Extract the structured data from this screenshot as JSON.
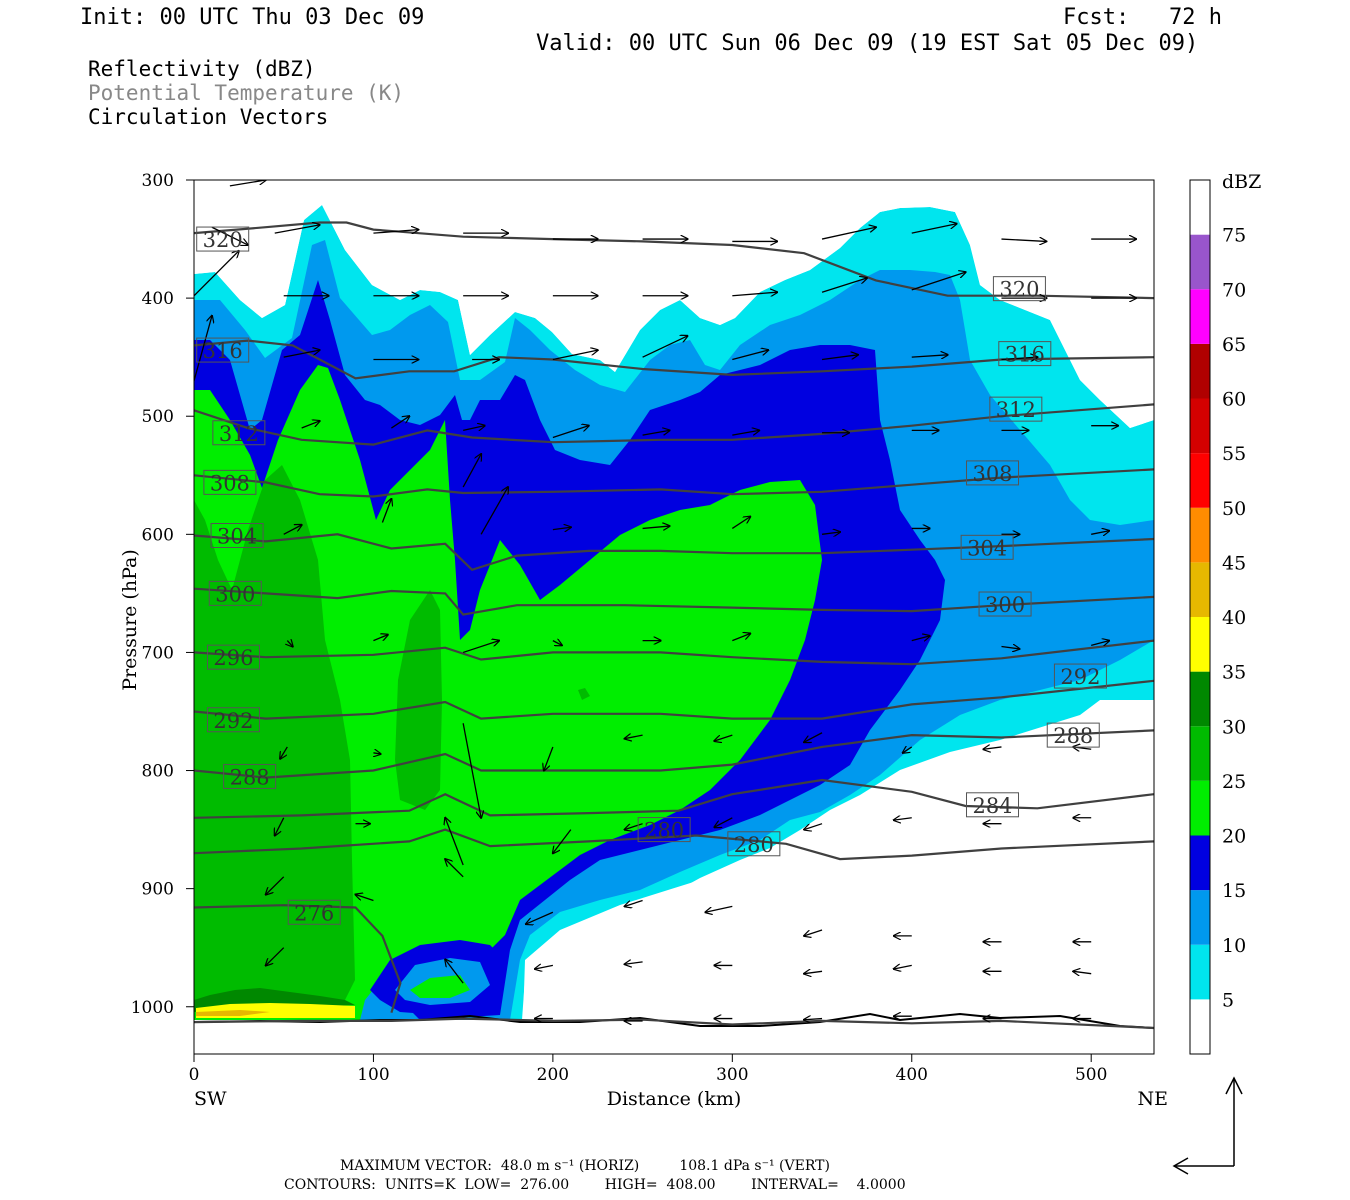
{
  "header": {
    "init": "Init: 00 UTC Thu 03 Dec 09",
    "fcst": "Fcst:   72 h",
    "valid": "Valid: 00 UTC Sun 06 Dec 09 (19 EST Sat 05 Dec 09)"
  },
  "fields": {
    "reflectivity": "Reflectivity (dBZ)",
    "theta": "Potential Temperature (K)",
    "vectors": "Circulation Vectors"
  },
  "colors": {
    "theta_label": "#888888",
    "contour_line": "#404040",
    "vector": "#000000"
  },
  "chart_data": {
    "type": "heatmap",
    "xlabel": "Distance (km)",
    "ylabel": "Pressure (hPa)",
    "xlim": [
      0,
      535
    ],
    "ylim": [
      1040,
      300
    ],
    "x_ticks": [
      0,
      100,
      200,
      300,
      400,
      500
    ],
    "y_ticks": [
      300,
      400,
      500,
      600,
      700,
      800,
      900,
      1000
    ],
    "x_end_labels": {
      "left": "SW",
      "right": "NE"
    },
    "colorbar": {
      "unit": "dBZ",
      "levels": [
        5,
        10,
        15,
        20,
        25,
        30,
        35,
        40,
        45,
        50,
        55,
        60,
        65,
        70,
        75
      ],
      "colors": [
        "#ffffff",
        "#00e5ee",
        "#0099ee",
        "#0000e0",
        "#00ee00",
        "#00bb00",
        "#008800",
        "#ffff00",
        "#e6b800",
        "#ff8c00",
        "#ff0000",
        "#d40000",
        "#b00000",
        "#ff00ff",
        "#9955cc",
        "#ffffff"
      ]
    },
    "theta_contours": [
      {
        "label": "320",
        "label_pos": [
          [
            16,
            350
          ],
          [
            460,
            392
          ]
        ],
        "values": [
          [
            0,
            345
          ],
          [
            40,
            340
          ],
          [
            70,
            336
          ],
          [
            85,
            336
          ],
          [
            100,
            342
          ],
          [
            150,
            348
          ],
          [
            200,
            350
          ],
          [
            250,
            352
          ],
          [
            300,
            355
          ],
          [
            340,
            362
          ],
          [
            380,
            385
          ],
          [
            420,
            398
          ],
          [
            470,
            398
          ],
          [
            535,
            400
          ]
        ]
      },
      {
        "label": "316",
        "label_pos": [
          [
            16,
            444
          ],
          [
            463,
            447
          ]
        ],
        "values": [
          [
            0,
            440
          ],
          [
            30,
            436
          ],
          [
            55,
            440
          ],
          [
            70,
            452
          ],
          [
            90,
            468
          ],
          [
            120,
            462
          ],
          [
            145,
            462
          ],
          [
            170,
            450
          ],
          [
            200,
            452
          ],
          [
            250,
            460
          ],
          [
            300,
            465
          ],
          [
            350,
            462
          ],
          [
            400,
            458
          ],
          [
            450,
            452
          ],
          [
            535,
            450
          ]
        ]
      },
      {
        "label": "312",
        "label_pos": [
          [
            25,
            514
          ],
          [
            458,
            494
          ]
        ],
        "values": [
          [
            0,
            495
          ],
          [
            30,
            510
          ],
          [
            60,
            520
          ],
          [
            100,
            524
          ],
          [
            130,
            512
          ],
          [
            155,
            518
          ],
          [
            200,
            522
          ],
          [
            260,
            520
          ],
          [
            300,
            520
          ],
          [
            350,
            515
          ],
          [
            400,
            508
          ],
          [
            450,
            500
          ],
          [
            535,
            490
          ]
        ]
      },
      {
        "label": "308",
        "label_pos": [
          [
            20,
            556
          ],
          [
            445,
            548
          ]
        ],
        "values": [
          [
            0,
            550
          ],
          [
            40,
            556
          ],
          [
            70,
            566
          ],
          [
            100,
            568
          ],
          [
            130,
            562
          ],
          [
            150,
            565
          ],
          [
            200,
            564
          ],
          [
            260,
            562
          ],
          [
            300,
            566
          ],
          [
            350,
            564
          ],
          [
            400,
            558
          ],
          [
            450,
            552
          ],
          [
            535,
            545
          ]
        ]
      },
      {
        "label": "304",
        "label_pos": [
          [
            24,
            601
          ],
          [
            442,
            611
          ]
        ],
        "values": [
          [
            0,
            601
          ],
          [
            40,
            606
          ],
          [
            80,
            600
          ],
          [
            110,
            612
          ],
          [
            140,
            608
          ],
          [
            155,
            630
          ],
          [
            180,
            618
          ],
          [
            220,
            614
          ],
          [
            260,
            614
          ],
          [
            300,
            616
          ],
          [
            350,
            616
          ],
          [
            400,
            613
          ],
          [
            450,
            610
          ],
          [
            535,
            604
          ]
        ]
      },
      {
        "label": "300",
        "label_pos": [
          [
            23,
            650
          ],
          [
            452,
            659
          ]
        ],
        "values": [
          [
            0,
            646
          ],
          [
            40,
            650
          ],
          [
            80,
            654
          ],
          [
            110,
            648
          ],
          [
            140,
            650
          ],
          [
            150,
            668
          ],
          [
            180,
            660
          ],
          [
            240,
            660
          ],
          [
            300,
            662
          ],
          [
            350,
            664
          ],
          [
            400,
            665
          ],
          [
            450,
            660
          ],
          [
            535,
            653
          ]
        ]
      },
      {
        "label": "296",
        "label_pos": [
          [
            22,
            704
          ]
        ],
        "values": [
          [
            0,
            700
          ],
          [
            40,
            704
          ],
          [
            100,
            702
          ],
          [
            140,
            696
          ],
          [
            160,
            706
          ],
          [
            200,
            700
          ],
          [
            260,
            700
          ],
          [
            300,
            704
          ],
          [
            350,
            708
          ],
          [
            400,
            710
          ],
          [
            450,
            705
          ],
          [
            535,
            690
          ]
        ]
      },
      {
        "label": "292",
        "label_pos": [
          [
            22,
            757
          ],
          [
            494,
            720
          ]
        ],
        "values": [
          [
            0,
            750
          ],
          [
            40,
            756
          ],
          [
            100,
            752
          ],
          [
            140,
            742
          ],
          [
            160,
            756
          ],
          [
            200,
            752
          ],
          [
            260,
            752
          ],
          [
            300,
            756
          ],
          [
            350,
            756
          ],
          [
            400,
            744
          ],
          [
            450,
            738
          ],
          [
            535,
            724
          ]
        ]
      },
      {
        "label": "288",
        "label_pos": [
          [
            31,
            805
          ],
          [
            490,
            770
          ]
        ],
        "values": [
          [
            0,
            800
          ],
          [
            40,
            806
          ],
          [
            100,
            800
          ],
          [
            140,
            786
          ],
          [
            160,
            800
          ],
          [
            200,
            800
          ],
          [
            260,
            800
          ],
          [
            300,
            795
          ],
          [
            350,
            780
          ],
          [
            400,
            770
          ],
          [
            450,
            772
          ],
          [
            535,
            766
          ]
        ]
      },
      {
        "label": "284",
        "label_pos": [
          [
            445,
            829
          ]
        ],
        "values": [
          [
            0,
            840
          ],
          [
            60,
            838
          ],
          [
            120,
            834
          ],
          [
            140,
            820
          ],
          [
            165,
            838
          ],
          [
            220,
            836
          ],
          [
            270,
            834
          ],
          [
            300,
            820
          ],
          [
            350,
            808
          ],
          [
            400,
            818
          ],
          [
            430,
            830
          ],
          [
            470,
            832
          ],
          [
            535,
            820
          ]
        ]
      },
      {
        "label": "280",
        "label_pos": [
          [
            262,
            850
          ],
          [
            312,
            862
          ]
        ],
        "values": [
          [
            0,
            870
          ],
          [
            60,
            866
          ],
          [
            120,
            860
          ],
          [
            140,
            850
          ],
          [
            165,
            864
          ],
          [
            220,
            860
          ],
          [
            280,
            855
          ],
          [
            330,
            862
          ],
          [
            360,
            875
          ],
          [
            400,
            872
          ],
          [
            450,
            866
          ],
          [
            535,
            860
          ]
        ]
      },
      {
        "label": "276",
        "label_pos": [
          [
            67,
            920
          ]
        ],
        "values": [
          [
            0,
            916
          ],
          [
            50,
            914
          ],
          [
            90,
            916
          ],
          [
            105,
            940
          ],
          [
            115,
            980
          ],
          [
            110,
            1005
          ]
        ]
      },
      {
        "label": "",
        "label_pos": [],
        "values": [
          [
            0,
            1013
          ],
          [
            60,
            1012
          ],
          [
            110,
            1012
          ],
          [
            150,
            1010
          ],
          [
            200,
            1012
          ],
          [
            250,
            1011
          ],
          [
            300,
            1015
          ],
          [
            350,
            1012
          ],
          [
            400,
            1014
          ],
          [
            450,
            1012
          ],
          [
            535,
            1018
          ]
        ]
      }
    ],
    "max_vector": "MAXIMUM VECTOR:  48.0 m s⁻¹ (HORIZ)         108.1 dPa s⁻¹ (VERT)",
    "contour_info": "CONTOURS:  UNITS=K  LOW=  276.00        HIGH=  408.00        INTERVAL=    4.0000"
  }
}
